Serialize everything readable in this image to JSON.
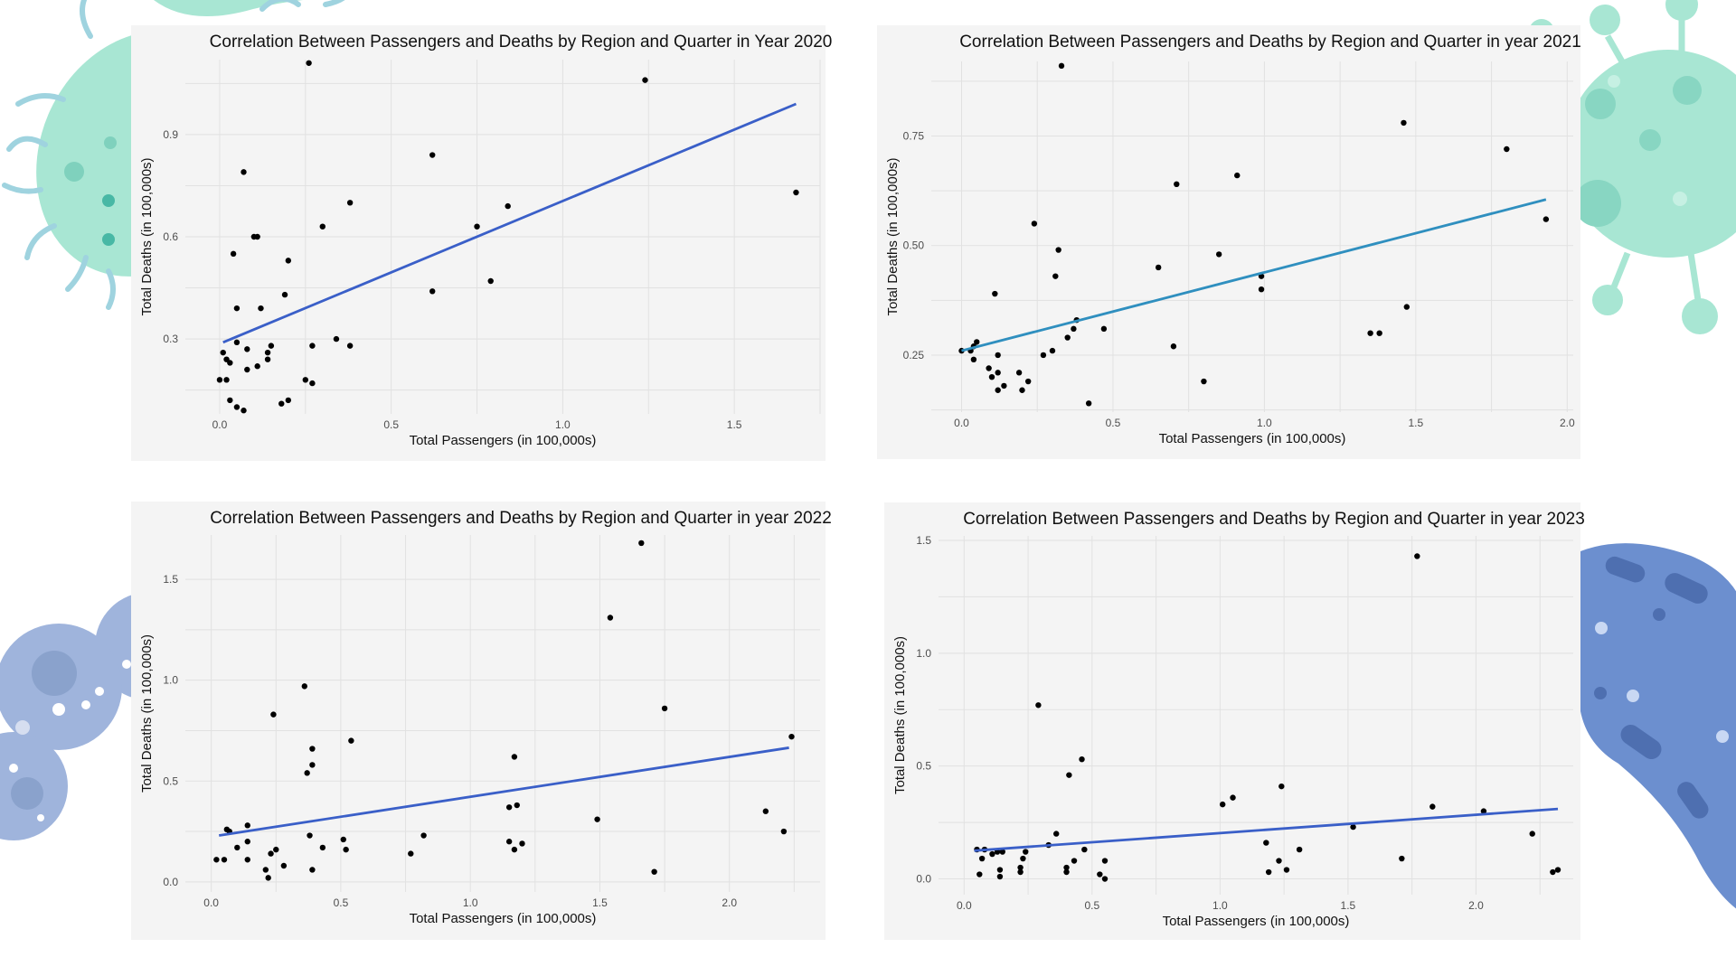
{
  "colors": {
    "panel_bg": "#f4f4f4",
    "grid": "#e1e1e1",
    "point": "#000000",
    "trend_blue": "#3a5fc8",
    "trend_teal": "#2f8fbf",
    "deco_teal": "#9fe3cf",
    "deco_blue_light": "#9fb4dc",
    "deco_blue_dark": "#6c8fcf"
  },
  "chart_data": [
    {
      "type": "scatter",
      "title": "Correlation Between Passengers and Deaths by Region and Quarter in Year 2020",
      "xlabel": "Total Passengers (in 100,000s)",
      "ylabel": "Total Deaths (in 100,000s)",
      "xlim": [
        -0.1,
        1.75
      ],
      "ylim": [
        0.08,
        1.12
      ],
      "xticks": [
        0.0,
        0.5,
        1.0,
        1.5
      ],
      "xtick_labels": [
        "0.0",
        "0.5",
        "1.0",
        "1.5"
      ],
      "yticks": [
        0.3,
        0.6,
        0.9
      ],
      "ytick_labels": [
        "0.3",
        "0.6",
        "0.9"
      ],
      "trend": {
        "x": [
          0.01,
          1.68
        ],
        "y": [
          0.29,
          0.99
        ],
        "color": "#3a5fc8"
      },
      "points": [
        [
          0.26,
          1.11
        ],
        [
          1.24,
          1.06
        ],
        [
          0.07,
          0.79
        ],
        [
          0.62,
          0.84
        ],
        [
          1.68,
          0.73
        ],
        [
          0.38,
          0.7
        ],
        [
          0.84,
          0.69
        ],
        [
          0.3,
          0.63
        ],
        [
          0.75,
          0.63
        ],
        [
          0.1,
          0.6
        ],
        [
          0.11,
          0.6
        ],
        [
          0.04,
          0.55
        ],
        [
          0.2,
          0.53
        ],
        [
          0.79,
          0.47
        ],
        [
          0.62,
          0.44
        ],
        [
          0.19,
          0.43
        ],
        [
          0.05,
          0.39
        ],
        [
          0.12,
          0.39
        ],
        [
          0.34,
          0.3
        ],
        [
          0.38,
          0.28
        ],
        [
          0.05,
          0.29
        ],
        [
          0.15,
          0.28
        ],
        [
          0.27,
          0.28
        ],
        [
          0.08,
          0.27
        ],
        [
          0.14,
          0.26
        ],
        [
          0.01,
          0.26
        ],
        [
          0.14,
          0.24
        ],
        [
          0.02,
          0.24
        ],
        [
          0.03,
          0.23
        ],
        [
          0.11,
          0.22
        ],
        [
          0.08,
          0.21
        ],
        [
          0.25,
          0.18
        ],
        [
          0.27,
          0.17
        ],
        [
          0.0,
          0.18
        ],
        [
          0.02,
          0.18
        ],
        [
          0.03,
          0.12
        ],
        [
          0.18,
          0.11
        ],
        [
          0.2,
          0.12
        ],
        [
          0.05,
          0.1
        ],
        [
          0.07,
          0.09
        ]
      ]
    },
    {
      "type": "scatter",
      "title": "Correlation Between Passengers and Deaths by Region and Quarter in year 2021",
      "xlabel": "Total Passengers (in 100,000s)",
      "ylabel": "Total Deaths (in 100,000s)",
      "xlim": [
        -0.1,
        2.02
      ],
      "ylim": [
        0.12,
        0.92
      ],
      "xticks": [
        0.0,
        0.5,
        1.0,
        1.5,
        2.0
      ],
      "xtick_labels": [
        "0.0",
        "0.5",
        "1.0",
        "1.5",
        "2.0"
      ],
      "yticks": [
        0.25,
        0.5,
        0.75
      ],
      "ytick_labels": [
        "0.25",
        "0.50",
        "0.75"
      ],
      "trend": {
        "x": [
          0.0,
          1.93
        ],
        "y": [
          0.26,
          0.605
        ],
        "color": "#2f8fbf"
      },
      "points": [
        [
          0.33,
          0.91
        ],
        [
          1.46,
          0.78
        ],
        [
          1.8,
          0.72
        ],
        [
          0.91,
          0.66
        ],
        [
          0.71,
          0.64
        ],
        [
          1.93,
          0.56
        ],
        [
          0.24,
          0.55
        ],
        [
          0.32,
          0.49
        ],
        [
          0.85,
          0.48
        ],
        [
          0.65,
          0.45
        ],
        [
          0.31,
          0.43
        ],
        [
          0.99,
          0.43
        ],
        [
          0.99,
          0.4
        ],
        [
          0.11,
          0.39
        ],
        [
          1.47,
          0.36
        ],
        [
          0.38,
          0.33
        ],
        [
          0.37,
          0.31
        ],
        [
          0.47,
          0.31
        ],
        [
          1.35,
          0.3
        ],
        [
          1.38,
          0.3
        ],
        [
          0.35,
          0.29
        ],
        [
          0.05,
          0.28
        ],
        [
          0.04,
          0.27
        ],
        [
          0.7,
          0.27
        ],
        [
          0.03,
          0.26
        ],
        [
          0.0,
          0.26
        ],
        [
          0.3,
          0.26
        ],
        [
          0.27,
          0.25
        ],
        [
          0.12,
          0.25
        ],
        [
          0.04,
          0.24
        ],
        [
          0.09,
          0.22
        ],
        [
          0.19,
          0.21
        ],
        [
          0.1,
          0.2
        ],
        [
          0.12,
          0.21
        ],
        [
          0.22,
          0.19
        ],
        [
          0.8,
          0.19
        ],
        [
          0.14,
          0.18
        ],
        [
          0.2,
          0.17
        ],
        [
          0.12,
          0.17
        ],
        [
          0.42,
          0.14
        ]
      ]
    },
    {
      "type": "scatter",
      "title": "Correlation Between Passengers and Deaths by Region and Quarter in year 2022",
      "xlabel": "Total Passengers (in 100,000s)",
      "ylabel": "Total Deaths (in 100,000s)",
      "xlim": [
        -0.1,
        2.35
      ],
      "ylim": [
        -0.05,
        1.72
      ],
      "xticks": [
        0.0,
        0.5,
        1.0,
        1.5,
        2.0
      ],
      "xtick_labels": [
        "0.0",
        "0.5",
        "1.0",
        "1.5",
        "2.0"
      ],
      "yticks": [
        0.0,
        0.5,
        1.0,
        1.5
      ],
      "ytick_labels": [
        "0.0",
        "0.5",
        "1.0",
        "1.5"
      ],
      "trend": {
        "x": [
          0.03,
          2.23
        ],
        "y": [
          0.23,
          0.665
        ],
        "color": "#3a5fc8"
      },
      "points": [
        [
          1.66,
          1.68
        ],
        [
          1.54,
          1.31
        ],
        [
          0.36,
          0.97
        ],
        [
          1.75,
          0.86
        ],
        [
          0.24,
          0.83
        ],
        [
          2.24,
          0.72
        ],
        [
          0.54,
          0.7
        ],
        [
          0.39,
          0.66
        ],
        [
          0.39,
          0.58
        ],
        [
          1.17,
          0.62
        ],
        [
          0.37,
          0.54
        ],
        [
          1.18,
          0.38
        ],
        [
          1.15,
          0.37
        ],
        [
          2.14,
          0.35
        ],
        [
          1.49,
          0.31
        ],
        [
          0.14,
          0.28
        ],
        [
          0.06,
          0.26
        ],
        [
          0.07,
          0.25
        ],
        [
          2.21,
          0.25
        ],
        [
          0.38,
          0.23
        ],
        [
          0.82,
          0.23
        ],
        [
          0.51,
          0.21
        ],
        [
          0.14,
          0.2
        ],
        [
          1.15,
          0.2
        ],
        [
          1.2,
          0.19
        ],
        [
          0.43,
          0.17
        ],
        [
          0.1,
          0.17
        ],
        [
          0.52,
          0.16
        ],
        [
          1.17,
          0.16
        ],
        [
          0.25,
          0.16
        ],
        [
          0.23,
          0.14
        ],
        [
          0.77,
          0.14
        ],
        [
          0.14,
          0.11
        ],
        [
          0.02,
          0.11
        ],
        [
          0.05,
          0.11
        ],
        [
          0.28,
          0.08
        ],
        [
          0.21,
          0.06
        ],
        [
          0.39,
          0.06
        ],
        [
          1.71,
          0.05
        ],
        [
          0.22,
          0.02
        ]
      ]
    },
    {
      "type": "scatter",
      "title": "Correlation Between Passengers and Deaths by Region and Quarter in year 2023",
      "xlabel": "Total Passengers (in 100,000s)",
      "ylabel": "Total Deaths (in 100,000s)",
      "xlim": [
        -0.1,
        2.38
      ],
      "ylim": [
        -0.07,
        1.52
      ],
      "xticks": [
        0.0,
        0.5,
        1.0,
        1.5,
        2.0
      ],
      "xtick_labels": [
        "0.0",
        "0.5",
        "1.0",
        "1.5",
        "2.0"
      ],
      "yticks": [
        0.0,
        0.5,
        1.0,
        1.5
      ],
      "ytick_labels": [
        "0.0",
        "0.5",
        "1.0",
        "1.5"
      ],
      "trend": {
        "x": [
          0.04,
          2.32
        ],
        "y": [
          0.125,
          0.31
        ],
        "color": "#3a5fc8"
      },
      "points": [
        [
          1.77,
          1.43
        ],
        [
          0.29,
          0.77
        ],
        [
          0.46,
          0.53
        ],
        [
          0.41,
          0.46
        ],
        [
          1.24,
          0.41
        ],
        [
          1.05,
          0.36
        ],
        [
          1.01,
          0.33
        ],
        [
          1.83,
          0.32
        ],
        [
          2.03,
          0.3
        ],
        [
          1.52,
          0.23
        ],
        [
          0.36,
          0.2
        ],
        [
          2.22,
          0.2
        ],
        [
          1.18,
          0.16
        ],
        [
          0.33,
          0.15
        ],
        [
          1.31,
          0.13
        ],
        [
          0.47,
          0.13
        ],
        [
          0.05,
          0.13
        ],
        [
          0.08,
          0.13
        ],
        [
          0.13,
          0.12
        ],
        [
          0.24,
          0.12
        ],
        [
          0.11,
          0.11
        ],
        [
          0.15,
          0.12
        ],
        [
          0.23,
          0.09
        ],
        [
          0.07,
          0.09
        ],
        [
          0.43,
          0.08
        ],
        [
          0.55,
          0.08
        ],
        [
          1.23,
          0.08
        ],
        [
          1.71,
          0.09
        ],
        [
          0.22,
          0.05
        ],
        [
          0.4,
          0.05
        ],
        [
          1.26,
          0.04
        ],
        [
          0.14,
          0.04
        ],
        [
          2.32,
          0.04
        ],
        [
          2.3,
          0.03
        ],
        [
          1.19,
          0.03
        ],
        [
          0.22,
          0.03
        ],
        [
          0.06,
          0.02
        ],
        [
          0.14,
          0.01
        ],
        [
          0.4,
          0.03
        ],
        [
          0.53,
          0.02
        ],
        [
          0.55,
          0.0
        ]
      ]
    }
  ]
}
